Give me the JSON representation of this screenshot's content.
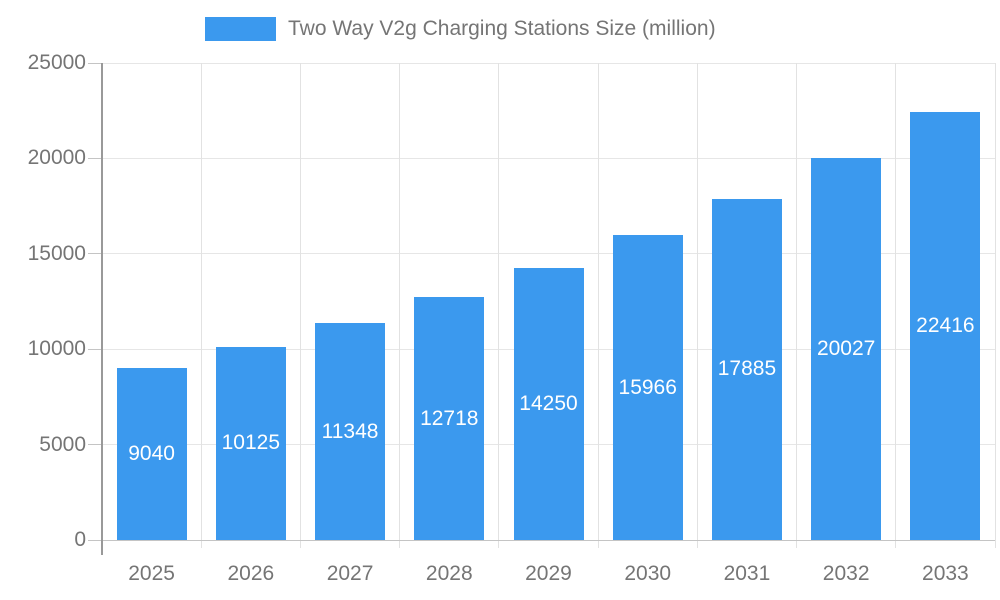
{
  "page": {
    "background_color": "#ffffff"
  },
  "legend": {
    "label": "Two Way V2g Charging Stations Size (million)",
    "position": "top"
  },
  "colors": {
    "bar_fill": "#3b99ee",
    "axis_text": "#757575",
    "bar_label_text": "#ffffff",
    "gridline": "#e6e6e6",
    "y_axis_line": "#999999",
    "x_axis_line": "#c4c4c4"
  },
  "chart_data": {
    "type": "bar",
    "title": "Two Way V2g Charging Stations Size (million)",
    "categories": [
      "2025",
      "2026",
      "2027",
      "2028",
      "2029",
      "2030",
      "2031",
      "2032",
      "2033"
    ],
    "values": [
      9040,
      10125,
      11348,
      12718,
      14250,
      15966,
      17885,
      20027,
      22416
    ],
    "series_name": "Two Way V2g Charging Stations Size (million)",
    "xlabel": "",
    "ylabel": "",
    "ylim": [
      0,
      25000
    ],
    "yticks": [
      0,
      5000,
      10000,
      15000,
      20000,
      25000
    ],
    "grid": "on",
    "legend_position": "top",
    "bar_labels_shown": true,
    "bar_label_placement": "inside-center"
  }
}
